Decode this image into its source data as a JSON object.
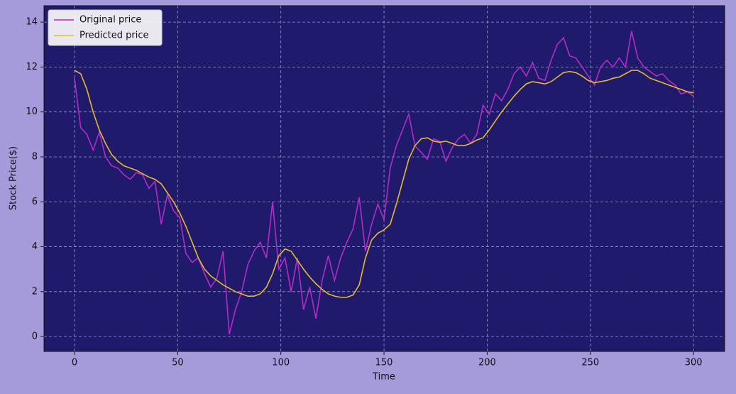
{
  "chart_data": {
    "type": "line",
    "x_label": "Time",
    "y_label": "Stock Price($)",
    "x": [
      0,
      3,
      6,
      9,
      12,
      15,
      18,
      21,
      24,
      27,
      30,
      33,
      36,
      39,
      42,
      45,
      48,
      51,
      54,
      57,
      60,
      63,
      66,
      69,
      72,
      75,
      78,
      81,
      84,
      87,
      90,
      93,
      96,
      99,
      102,
      105,
      108,
      111,
      114,
      117,
      120,
      123,
      126,
      129,
      132,
      135,
      138,
      141,
      144,
      147,
      150,
      153,
      156,
      159,
      162,
      165,
      168,
      171,
      174,
      177,
      180,
      183,
      186,
      189,
      192,
      195,
      198,
      201,
      204,
      207,
      210,
      213,
      216,
      219,
      222,
      225,
      228,
      231,
      234,
      237,
      240,
      243,
      246,
      249,
      252,
      255,
      258,
      261,
      264,
      267,
      270,
      273,
      276,
      279,
      282,
      285,
      288,
      291,
      294,
      297,
      300
    ],
    "series": [
      {
        "name": "Original price",
        "color": "#b42bc8",
        "values": [
          11.5,
          9.3,
          9.0,
          8.3,
          9.1,
          8.0,
          7.6,
          7.5,
          7.2,
          7.0,
          7.3,
          7.2,
          6.6,
          6.9,
          5.0,
          6.3,
          5.6,
          5.3,
          3.7,
          3.3,
          3.5,
          2.8,
          2.2,
          2.6,
          3.8,
          0.1,
          1.2,
          2.0,
          3.2,
          3.8,
          4.2,
          3.5,
          6.0,
          3.0,
          3.5,
          2.0,
          3.5,
          1.2,
          2.2,
          0.8,
          2.5,
          3.6,
          2.5,
          3.5,
          4.2,
          4.8,
          6.2,
          3.8,
          5.0,
          5.9,
          5.2,
          7.5,
          8.5,
          9.2,
          9.9,
          8.5,
          8.2,
          7.9,
          8.8,
          8.7,
          7.8,
          8.4,
          8.8,
          9.0,
          8.6,
          9.0,
          10.3,
          9.9,
          10.8,
          10.5,
          11.0,
          11.7,
          12.0,
          11.6,
          12.2,
          11.5,
          11.4,
          12.3,
          13.0,
          13.3,
          12.5,
          12.4,
          12.0,
          11.6,
          11.2,
          12.0,
          12.3,
          12.0,
          12.4,
          12.0,
          13.6,
          12.4,
          12.0,
          11.8,
          11.6,
          11.7,
          11.4,
          11.2,
          10.8,
          10.9,
          10.7
        ]
      },
      {
        "name": "Predicted price",
        "color": "#e8b830",
        "values": [
          11.85,
          11.7,
          11.0,
          10.0,
          9.2,
          8.6,
          8.1,
          7.8,
          7.6,
          7.5,
          7.4,
          7.25,
          7.1,
          7.0,
          6.8,
          6.4,
          6.0,
          5.5,
          4.9,
          4.2,
          3.5,
          3.0,
          2.7,
          2.5,
          2.3,
          2.15,
          2.0,
          1.9,
          1.8,
          1.8,
          1.9,
          2.2,
          2.8,
          3.6,
          3.9,
          3.8,
          3.4,
          3.0,
          2.65,
          2.35,
          2.1,
          1.9,
          1.8,
          1.75,
          1.75,
          1.85,
          2.3,
          3.5,
          4.3,
          4.6,
          4.75,
          5.0,
          5.9,
          6.9,
          7.9,
          8.5,
          8.8,
          8.85,
          8.7,
          8.65,
          8.7,
          8.6,
          8.5,
          8.5,
          8.6,
          8.75,
          8.85,
          9.2,
          9.6,
          10.0,
          10.35,
          10.7,
          11.0,
          11.25,
          11.35,
          11.3,
          11.25,
          11.35,
          11.55,
          11.75,
          11.8,
          11.75,
          11.6,
          11.4,
          11.3,
          11.35,
          11.4,
          11.5,
          11.55,
          11.7,
          11.85,
          11.85,
          11.7,
          11.5,
          11.4,
          11.3,
          11.2,
          11.1,
          11.0,
          10.9,
          10.85
        ]
      }
    ],
    "xlim": [
      -14.8,
      315.1
    ],
    "ylim": [
      -0.66,
      14.73
    ],
    "xticks": [
      0,
      50,
      100,
      150,
      200,
      250,
      300
    ],
    "yticks": [
      0,
      2,
      4,
      6,
      8,
      10,
      12,
      14
    ],
    "grid": true,
    "legend": "upper-left"
  }
}
